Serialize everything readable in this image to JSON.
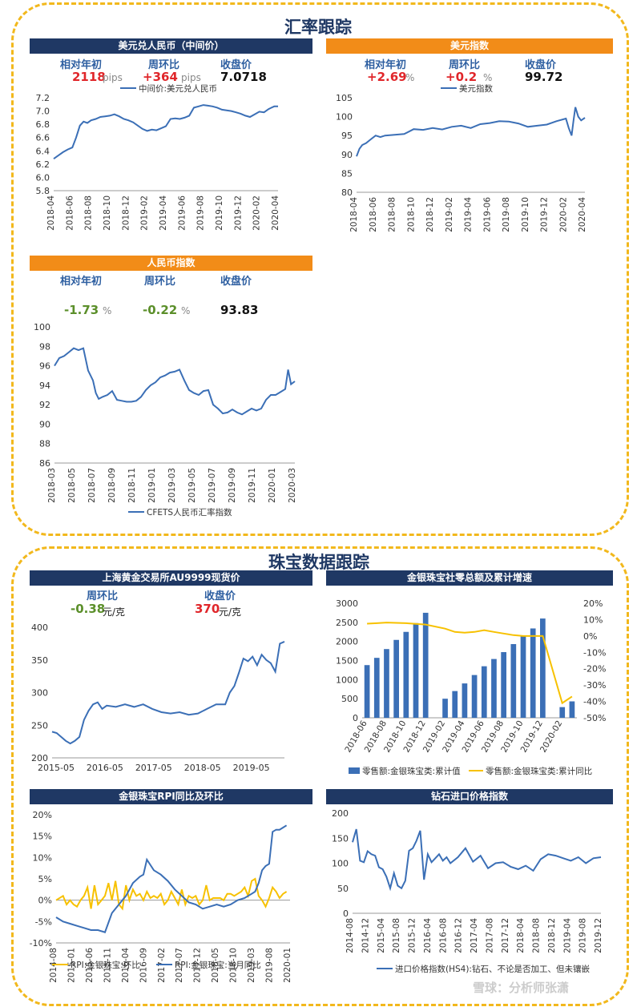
{
  "sections": {
    "fx": "汇率跟踪",
    "jewelry": "珠宝数据跟踪"
  },
  "panels": {
    "usdcny": {
      "title": "美元兑人民币（中间价）",
      "labels": [
        "相对年初",
        "周环比",
        "收盘价"
      ],
      "ytd": "2118",
      "ytd_unit": "pips",
      "wow": "+364",
      "wow_unit": "pips",
      "close": "7.0718"
    },
    "dxy": {
      "title": "美元指数",
      "labels": [
        "相对年初",
        "周环比",
        "收盘价"
      ],
      "ytd": "+2.69",
      "ytd_unit": "%",
      "wow": "+0.2",
      "wow_unit": "%",
      "close": "99.72"
    },
    "cfets": {
      "title": "人民币指数",
      "labels": [
        "相对年初",
        "周环比",
        "收盘价"
      ],
      "ytd": "-1.73",
      "ytd_unit": "%",
      "wow": "-0.22",
      "wow_unit": "%",
      "close": "93.83"
    },
    "gold": {
      "title": "上海黄金交易所AU9999现货价",
      "labels": [
        "周环比",
        "收盘价"
      ],
      "wow": "-0.38",
      "wow_unit": "元/克",
      "close": "370",
      "close_unit": "元/克"
    },
    "retail": {
      "title": "金银珠宝社零总额及累计增速"
    },
    "rpi": {
      "title": "金银珠宝RPI同比及环比"
    },
    "diamond": {
      "title": "钻石进口价格指数"
    }
  },
  "watermark": "雪球：分析师张潇",
  "colors": {
    "navy": "#1f3864",
    "orange": "#f28c18",
    "blue": "#3b6fb6",
    "gold": "#f7c100",
    "frame": "#f2b81c"
  },
  "chart_data": [
    {
      "id": "usdcny",
      "type": "line",
      "legend": "中间价:美元兑人民币",
      "legend_position": "top",
      "ylim": [
        5.8,
        7.2
      ],
      "yticks": [
        5.8,
        6.0,
        6.2,
        6.4,
        6.6,
        6.8,
        7.0,
        7.2
      ],
      "xticks": [
        "2018-04",
        "2018-06",
        "2018-08",
        "2018-10",
        "2018-12",
        "2019-02",
        "2019-04",
        "2019-06",
        "2019-08",
        "2019-10",
        "2019-12",
        "2020-02",
        "2020-04"
      ],
      "series": [
        {
          "name": "中间价:美元兑人民币",
          "x": [
            0,
            0.5,
            1.0,
            1.5,
            2.0,
            2.4,
            2.8,
            3.2,
            3.6,
            4.0,
            4.5,
            5.0,
            5.5,
            6.0,
            6.5,
            7.0,
            7.5,
            8.0,
            8.5,
            9.0,
            9.5,
            10.0,
            10.5,
            11.0,
            11.5,
            12.0,
            12.5,
            13.0,
            13.5,
            14.0,
            14.5,
            15.0,
            15.5,
            16.0,
            16.5,
            17.0,
            17.5,
            18.0,
            18.5,
            19.0,
            19.5,
            20.0,
            20.5,
            21.0,
            21.5,
            22.0,
            22.5,
            23.0,
            23.3,
            23.6,
            24.0
          ],
          "values": [
            6.28,
            6.33,
            6.38,
            6.42,
            6.45,
            6.6,
            6.78,
            6.84,
            6.82,
            6.86,
            6.88,
            6.91,
            6.92,
            6.93,
            6.95,
            6.92,
            6.88,
            6.86,
            6.83,
            6.78,
            6.73,
            6.7,
            6.72,
            6.71,
            6.74,
            6.77,
            6.88,
            6.89,
            6.88,
            6.9,
            6.93,
            7.05,
            7.07,
            7.09,
            7.08,
            7.07,
            7.05,
            7.02,
            7.01,
            7.0,
            6.98,
            6.96,
            6.93,
            6.91,
            6.95,
            6.99,
            6.98,
            7.03,
            7.05,
            7.07,
            7.07
          ]
        }
      ],
      "xlim": [
        0,
        24
      ]
    },
    {
      "id": "dxy",
      "type": "line",
      "legend": "美元指数",
      "legend_position": "top",
      "ylim": [
        80,
        105
      ],
      "yticks": [
        80,
        85,
        90,
        95,
        100,
        105
      ],
      "xticks": [
        "2018-04",
        "2018-06",
        "2018-08",
        "2018-10",
        "2018-12",
        "2019-02",
        "2019-04",
        "2019-06",
        "2019-08",
        "2019-10",
        "2019-12",
        "2020-02",
        "2020-04"
      ],
      "series": [
        {
          "name": "美元指数",
          "x": [
            0,
            0.3,
            0.6,
            1.0,
            1.5,
            2.0,
            2.5,
            3.0,
            4.0,
            5.0,
            6.0,
            7.0,
            8.0,
            9.0,
            10.0,
            11.0,
            12.0,
            13.0,
            14.0,
            15.0,
            16.0,
            17.0,
            18.0,
            19.0,
            20.0,
            21.0,
            22.0,
            22.3,
            22.6,
            22.8,
            23.0,
            23.3,
            23.6,
            24.0
          ],
          "values": [
            89.5,
            91.5,
            92.5,
            93.0,
            94.0,
            95.0,
            94.6,
            95.0,
            95.2,
            95.4,
            96.7,
            96.5,
            97.0,
            96.6,
            97.3,
            97.6,
            97.0,
            98.0,
            98.3,
            98.8,
            98.7,
            98.2,
            97.3,
            97.6,
            97.9,
            98.8,
            99.5,
            97.0,
            95.0,
            99.0,
            102.5,
            100.0,
            99.0,
            99.7
          ]
        }
      ],
      "xlim": [
        0,
        24
      ]
    },
    {
      "id": "cfets",
      "type": "line",
      "legend": "CFETS人民币汇率指数",
      "legend_position": "bottom",
      "ylim": [
        86,
        100
      ],
      "yticks": [
        86,
        88,
        90,
        92,
        94,
        96,
        98,
        100
      ],
      "xticks": [
        "2018-03",
        "2018-05",
        "2018-07",
        "2018-09",
        "2018-11",
        "2019-01",
        "2019-03",
        "2019-05",
        "2019-07",
        "2019-09",
        "2019-11",
        "2020-01",
        "2020-03"
      ],
      "series": [
        {
          "name": "CFETS人民币汇率指数",
          "x": [
            0,
            0.5,
            1.0,
            1.5,
            2.0,
            2.5,
            3.0,
            3.5,
            4.0,
            4.3,
            4.6,
            5.0,
            5.5,
            6.0,
            6.5,
            7.0,
            7.5,
            8.0,
            8.5,
            9.0,
            9.5,
            10.0,
            10.5,
            11.0,
            11.5,
            12.0,
            12.5,
            13.0,
            13.5,
            14.0,
            14.5,
            15.0,
            15.5,
            16.0,
            16.5,
            17.0,
            17.5,
            18.0,
            18.5,
            19.0,
            19.5,
            20.0,
            20.5,
            21.0,
            21.5,
            22.0,
            22.5,
            23.0,
            23.5,
            24.0,
            24.3,
            24.6,
            25.0
          ],
          "values": [
            96.0,
            96.8,
            97.0,
            97.4,
            97.8,
            97.6,
            97.8,
            95.5,
            94.5,
            93.2,
            92.6,
            92.8,
            93.0,
            93.4,
            92.5,
            92.4,
            92.3,
            92.3,
            92.4,
            92.8,
            93.5,
            94.0,
            94.3,
            94.8,
            95.0,
            95.3,
            95.4,
            95.6,
            94.5,
            93.5,
            93.2,
            93.0,
            93.4,
            93.5,
            92.0,
            91.6,
            91.1,
            91.2,
            91.5,
            91.2,
            91.0,
            91.3,
            91.6,
            91.4,
            91.6,
            92.5,
            93.0,
            93.0,
            93.3,
            93.6,
            95.6,
            94.1,
            94.4
          ]
        }
      ],
      "xlim": [
        0,
        25
      ]
    },
    {
      "id": "gold",
      "type": "line",
      "legend": "",
      "legend_position": "none",
      "ylim": [
        200,
        400
      ],
      "yticks": [
        200,
        250,
        300,
        350,
        400
      ],
      "xticks": [
        "2015-05",
        "2016-05",
        "2017-05",
        "2018-05",
        "2019-05"
      ],
      "series": [
        {
          "name": "",
          "x": [
            0,
            0.1,
            0.2,
            0.3,
            0.4,
            0.5,
            0.6,
            0.7,
            0.8,
            0.9,
            1.0,
            1.1,
            1.2,
            1.4,
            1.6,
            1.8,
            2.0,
            2.2,
            2.4,
            2.6,
            2.8,
            3.0,
            3.2,
            3.4,
            3.6,
            3.8,
            3.9,
            4.0,
            4.1,
            4.2,
            4.3,
            4.4,
            4.5,
            4.6,
            4.7,
            4.8,
            4.9,
            5.0,
            5.1
          ],
          "values": [
            240,
            238,
            232,
            226,
            222,
            226,
            232,
            258,
            272,
            282,
            285,
            275,
            280,
            278,
            282,
            278,
            282,
            275,
            270,
            268,
            270,
            266,
            268,
            275,
            282,
            282,
            300,
            310,
            330,
            352,
            348,
            355,
            342,
            358,
            350,
            345,
            332,
            375,
            378
          ]
        }
      ],
      "xlim": [
        0,
        5.1
      ]
    },
    {
      "id": "retail",
      "type": "bar",
      "categories": [
        "2018-06",
        "2018-07",
        "2018-08",
        "2018-09",
        "2018-10",
        "2018-11",
        "2018-12",
        "2019-01",
        "2019-02",
        "2019-03",
        "2019-04",
        "2019-05",
        "2019-06",
        "2019-07",
        "2019-08",
        "2019-09",
        "2019-10",
        "2019-11",
        "2019-12",
        "2020-01",
        "2020-02",
        "2020-03"
      ],
      "xticks": [
        "2018-06",
        "2018-08",
        "2018-10",
        "2018-12",
        "2019-02",
        "2019-04",
        "2019-06",
        "2019-08",
        "2019-10",
        "2019-12",
        "2020-02"
      ],
      "ylim": [
        0,
        3000
      ],
      "yticks": [
        0,
        500,
        1000,
        1500,
        2000,
        2500,
        3000
      ],
      "y2lim": [
        -50,
        20
      ],
      "y2ticks": [
        "20%",
        "10%",
        "0%",
        "-10%",
        "-20%",
        "-30%",
        "-40%",
        "-50%"
      ],
      "series": [
        {
          "name": "零售额:金银珠宝类:累计值",
          "type": "bar",
          "values": [
            1380,
            1570,
            1800,
            2040,
            2250,
            2480,
            2750,
            null,
            500,
            700,
            900,
            1120,
            1350,
            1540,
            1720,
            1930,
            2130,
            2340,
            2600,
            null,
            280,
            430
          ]
        },
        {
          "name": "零售额:金银珠宝类:累计同比",
          "type": "line",
          "axis": "right",
          "values": [
            7.5,
            7.8,
            8.2,
            8.0,
            7.8,
            7.4,
            7.0,
            null,
            4.5,
            2.5,
            2.0,
            2.5,
            3.5,
            2.5,
            1.5,
            0.5,
            0,
            0,
            0,
            null,
            -41.0,
            -37.0
          ]
        }
      ],
      "legend": [
        "零售额:金银珠宝类:累计值",
        "零售额:金银珠宝类:累计同比"
      ],
      "legend_position": "bottom"
    },
    {
      "id": "rpi",
      "type": "line",
      "ylim": [
        -10,
        20
      ],
      "yticks": [
        "20%",
        "15%",
        "10%",
        "5%",
        "0%",
        "-5%",
        "-10%"
      ],
      "xticks": [
        "2014-08",
        "2015-01",
        "2015-06",
        "2015-11",
        "2016-04",
        "2016-09",
        "2017-02",
        "2017-07",
        "2017-12",
        "2018-05",
        "2018-10",
        "2019-03",
        "2019-08",
        "2020-01"
      ],
      "xlim": [
        0,
        67
      ],
      "series": [
        {
          "name": "RPI:金银珠宝:环比",
          "x": [
            0,
            2,
            3,
            4,
            5,
            6,
            7,
            8,
            9,
            10,
            11,
            12,
            13,
            14,
            15,
            16,
            17,
            18,
            19,
            20,
            21,
            22,
            23,
            24,
            25,
            26,
            27,
            28,
            29,
            30,
            31,
            32,
            33,
            34,
            35,
            36,
            37,
            38,
            39,
            40,
            41,
            42,
            43,
            44,
            45,
            46,
            47,
            48,
            49,
            50,
            51,
            52,
            53,
            54,
            55,
            56,
            57,
            58,
            59,
            60,
            61,
            62,
            63,
            64,
            65,
            66
          ],
          "values": [
            0,
            1,
            -1,
            0,
            -1,
            -1.5,
            0,
            1,
            3,
            -2,
            3.5,
            -1,
            0,
            1,
            4,
            0,
            4.5,
            -1,
            -2,
            3.5,
            0,
            2.5,
            1,
            1.5,
            0,
            2,
            0.5,
            1,
            0.5,
            1.5,
            -1,
            0,
            2,
            0.5,
            -1,
            2.5,
            -1,
            1,
            0.5,
            1,
            -1,
            0,
            3.5,
            0,
            0.5,
            0.5,
            0.5,
            0,
            1.5,
            1.5,
            1,
            1.5,
            2,
            3,
            1,
            4.5,
            5,
            1,
            0,
            -1.5,
            0.5,
            3,
            2,
            0.5,
            1.5,
            2
          ]
        },
        {
          "name": "RPI:金银珠宝:当月同比",
          "x": [
            0,
            2,
            4,
            6,
            8,
            10,
            12,
            14,
            16,
            18,
            20,
            22,
            24,
            25,
            26,
            28,
            30,
            32,
            34,
            36,
            38,
            40,
            42,
            44,
            46,
            48,
            50,
            52,
            54,
            55,
            56,
            57,
            58,
            59,
            60,
            61,
            62,
            63,
            64,
            65,
            66
          ],
          "values": [
            -4,
            -5,
            -5.5,
            -6,
            -6.5,
            -7,
            -7,
            -7.5,
            -3,
            -1,
            1,
            4,
            5.5,
            6,
            9.5,
            7,
            6,
            4.5,
            2.5,
            1,
            -0.5,
            -1,
            -2,
            -1.5,
            -1,
            -1.5,
            -1,
            0,
            0.5,
            1,
            1.5,
            2,
            4,
            7,
            8,
            8.5,
            16,
            16.5,
            16.5,
            17,
            17.5
          ]
        }
      ],
      "legend": [
        "RPI:金银珠宝:环比",
        "RPI:金银珠宝:当月同比"
      ],
      "legend_position": "bottom"
    },
    {
      "id": "diamond",
      "type": "line",
      "ylim": [
        0,
        200
      ],
      "yticks": [
        0,
        50,
        100,
        150,
        200
      ],
      "xticks": [
        "2014-08",
        "2014-12",
        "2015-04",
        "2015-08",
        "2015-12",
        "2016-04",
        "2016-08",
        "2016-12",
        "2017-04",
        "2017-08",
        "2017-12",
        "2018-04",
        "2018-08",
        "2018-12",
        "2019-04",
        "2019-08",
        "2019-12"
      ],
      "xlim": [
        0,
        66
      ],
      "series": [
        {
          "name": "进口价格指数(HS4):钻石、不论是否加工、但未镶嵌",
          "x": [
            0,
            1,
            2,
            3,
            4,
            5,
            6,
            7,
            8,
            9,
            10,
            11,
            12,
            13,
            14,
            15,
            16,
            17,
            18,
            19,
            20,
            21,
            22,
            23,
            24,
            25,
            26,
            28,
            30,
            32,
            34,
            36,
            38,
            40,
            42,
            44,
            46,
            48,
            50,
            52,
            54,
            56,
            58,
            60,
            62,
            64,
            66
          ],
          "values": [
            142,
            168,
            105,
            102,
            124,
            118,
            115,
            92,
            88,
            73,
            50,
            80,
            55,
            50,
            65,
            125,
            130,
            145,
            165,
            67,
            118,
            102,
            110,
            118,
            105,
            112,
            100,
            112,
            130,
            103,
            115,
            90,
            100,
            102,
            93,
            88,
            95,
            85,
            108,
            118,
            115,
            110,
            105,
            112,
            100,
            110,
            112
          ]
        }
      ],
      "legend": [
        "进口价格指数(HS4):钻石、不论是否加工、但未镶嵌"
      ],
      "legend_position": "bottom"
    }
  ]
}
